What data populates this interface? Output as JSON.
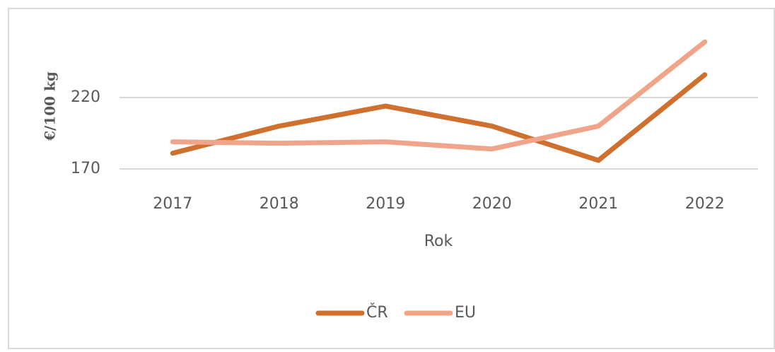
{
  "chart_data": {
    "type": "line",
    "y_label": "€/100 kg",
    "x_label": "Rok",
    "categories": [
      "2017",
      "2018",
      "2019",
      "2020",
      "2021",
      "2022"
    ],
    "series": [
      {
        "name": "ČR",
        "color": "#d0702e",
        "values": [
          181,
          200,
          214,
          200,
          176,
          236
        ]
      },
      {
        "name": "EU",
        "color": "#f0a58a",
        "values": [
          189,
          188,
          189,
          184,
          200,
          259
        ]
      }
    ],
    "ylim": [
      170,
      270
    ],
    "yticks": [
      170,
      220
    ],
    "grid": true
  }
}
